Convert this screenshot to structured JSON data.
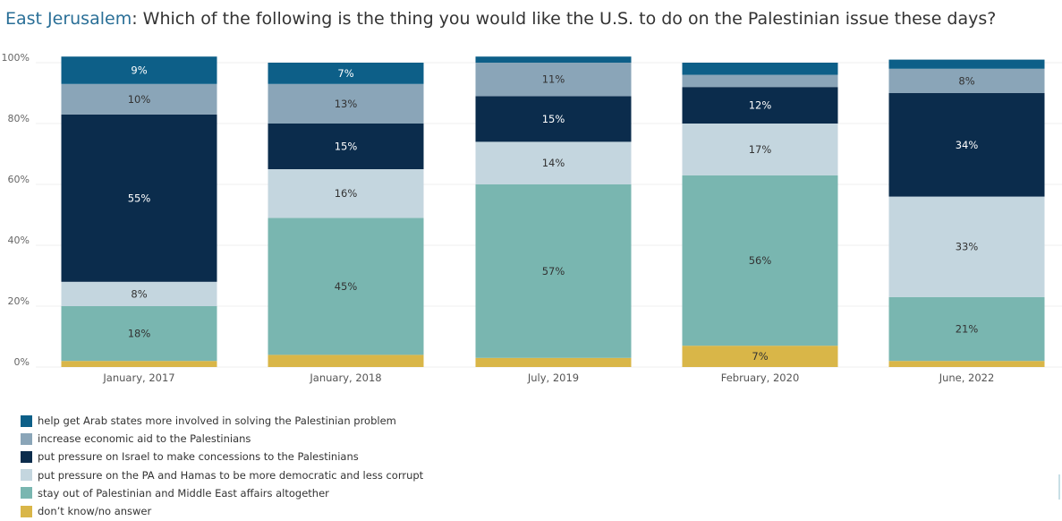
{
  "title": {
    "place": "East Jerusalem",
    "separator": ": ",
    "question": "Which of the following is the thing you would like the U.S. to do on the Palestinian issue these days?"
  },
  "chart_data": {
    "type": "bar",
    "stacked": true,
    "categories": [
      "January, 2017",
      "January, 2018",
      "July, 2019",
      "February, 2020",
      "June, 2022"
    ],
    "y_ticks": [
      "0%",
      "20%",
      "40%",
      "60%",
      "80%",
      "100%"
    ],
    "ylim": [
      0,
      100
    ],
    "legend_position": "bottom-left",
    "series": [
      {
        "name": "don’t know/no answer",
        "color": "#d9b648",
        "values": [
          2,
          4,
          3,
          7,
          2
        ],
        "labels": [
          "",
          "",
          "",
          "7%",
          ""
        ]
      },
      {
        "name": "stay out of Palestinian and Middle East affairs altogether",
        "color": "#79b6b0",
        "values": [
          18,
          45,
          57,
          56,
          21
        ],
        "labels": [
          "18%",
          "45%",
          "57%",
          "56%",
          "21%"
        ]
      },
      {
        "name": "put pressure on the PA and Hamas to be more democratic and less corrupt",
        "color": "#c4d6df",
        "values": [
          8,
          16,
          14,
          17,
          33
        ],
        "labels": [
          "8%",
          "16%",
          "14%",
          "17%",
          "33%"
        ]
      },
      {
        "name": "put pressure on Israel to make concessions to the Palestinians",
        "color": "#0b2c4c",
        "values": [
          55,
          15,
          15,
          12,
          34
        ],
        "labels": [
          "55%",
          "15%",
          "15%",
          "12%",
          "34%"
        ]
      },
      {
        "name": "increase economic aid to the Palestinians",
        "color": "#8aa5b8",
        "values": [
          10,
          13,
          11,
          4,
          8
        ],
        "labels": [
          "10%",
          "13%",
          "11%",
          "",
          "8%"
        ]
      },
      {
        "name": "help get Arab states more involved in solving the Palestinian problem",
        "color": "#0d5f88",
        "values": [
          9,
          7,
          2,
          4,
          3
        ],
        "labels": [
          "9%",
          "7%",
          "",
          "",
          ""
        ]
      }
    ]
  },
  "legend": [
    {
      "label": "help get Arab states more involved in solving the Palestinian problem",
      "color": "#0d5f88"
    },
    {
      "label": "increase economic aid to the Palestinians",
      "color": "#8aa5b8"
    },
    {
      "label": "put pressure on Israel to make concessions to the Palestinians",
      "color": "#0b2c4c"
    },
    {
      "label": "put pressure on the PA and Hamas to be more democratic and less corrupt",
      "color": "#c4d6df"
    },
    {
      "label": "stay out of Palestinian and Middle East affairs altogether",
      "color": "#79b6b0"
    },
    {
      "label": "don’t know/no answer",
      "color": "#d9b648"
    }
  ]
}
